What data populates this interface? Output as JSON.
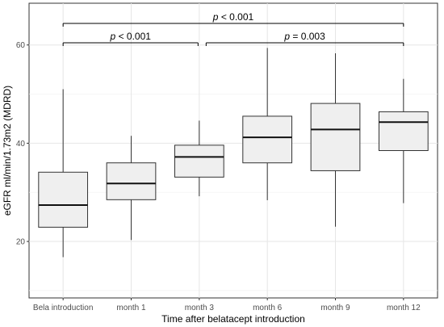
{
  "chart_data": {
    "type": "box",
    "title": "",
    "xlabel": "Time after belatacept introduction",
    "ylabel": "eGFR ml/min/1.73m2 (MDRD)",
    "categories": [
      "Bela introduction",
      "month 1",
      "month 3",
      "month 6",
      "month 9",
      "month 12"
    ],
    "ylim": [
      8.5,
      68.5
    ],
    "yticks": [
      20,
      40,
      60
    ],
    "grid": true,
    "legend": "none",
    "box_fill": "#efefef",
    "box_stroke": "#333333",
    "boxes": [
      {
        "category": "Bela introduction",
        "whisker_low": 16.8,
        "q1": 22.9,
        "median": 27.4,
        "q3": 34.1,
        "whisker_high": 51.0
      },
      {
        "category": "month 1",
        "whisker_low": 20.3,
        "q1": 28.5,
        "median": 31.8,
        "q3": 36.0,
        "whisker_high": 41.5
      },
      {
        "category": "month 3",
        "whisker_low": 29.2,
        "q1": 33.1,
        "median": 37.2,
        "q3": 39.6,
        "whisker_high": 44.6
      },
      {
        "category": "month 6",
        "whisker_low": 28.4,
        "q1": 36.0,
        "median": 41.2,
        "q3": 45.5,
        "whisker_high": 59.4
      },
      {
        "category": "month 9",
        "whisker_low": 23.0,
        "q1": 34.4,
        "median": 42.8,
        "q3": 48.1,
        "whisker_high": 58.3
      },
      {
        "category": "month 12",
        "whisker_low": 27.8,
        "q1": 38.5,
        "median": 44.3,
        "q3": 46.4,
        "whisker_high": 53.1
      }
    ],
    "significance": [
      {
        "from": "Bela introduction",
        "to": "month 12",
        "p_symbol": "p",
        "p_text": " < 0.001"
      },
      {
        "from": "Bela introduction",
        "to": "month 3",
        "p_symbol": "p",
        "p_text": " < 0.001"
      },
      {
        "from": "month 3",
        "to": "month 12",
        "p_symbol": "p",
        "p_text": " = 0.003"
      }
    ]
  }
}
